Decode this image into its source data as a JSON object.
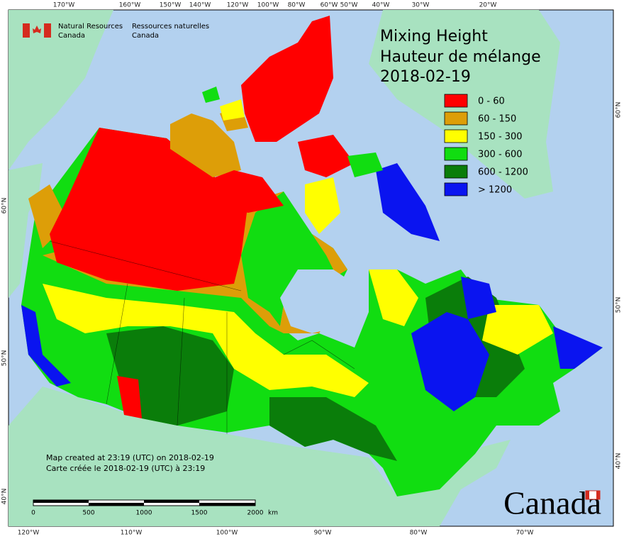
{
  "logo": {
    "en_line1": "Natural Resources",
    "en_line2": "Canada",
    "fr_line1": "Ressources naturelles",
    "fr_line2": "Canada"
  },
  "legend": {
    "title_en": "Mixing Height",
    "title_fr": "Hauteur de mélange",
    "date": "2018-02-19",
    "classes": [
      {
        "label": "0 - 60",
        "color": "#ff0000"
      },
      {
        "label": "60 - 150",
        "color": "#dd9e08"
      },
      {
        "label": "150 - 300",
        "color": "#ffff00"
      },
      {
        "label": "300 - 600",
        "color": "#11dd11"
      },
      {
        "label": "600 - 1200",
        "color": "#0a7d0a"
      },
      {
        "label": "> 1200",
        "color": "#0a14f0"
      }
    ]
  },
  "note": {
    "en": "Map created at 23:19 (UTC) on 2018-02-19",
    "fr": "Carte créée le 2018-02-19 (UTC) à 23:19"
  },
  "scale_bar": {
    "labels": [
      "0",
      "500",
      "1000",
      "1500",
      "2000"
    ],
    "unit": "km"
  },
  "wordmark": "Canada",
  "graticule": {
    "top": [
      "170°W",
      "160°W",
      "150°W",
      "140°W",
      "120°W",
      "100°W",
      "80°W",
      "60°W",
      "50°W",
      "40°W",
      "30°W",
      "20°W"
    ],
    "bottom": [
      "120°W",
      "110°W",
      "100°W",
      "90°W",
      "80°W",
      "70°W"
    ],
    "left": [
      "60°N",
      "50°N",
      "40°N"
    ],
    "right": [
      "60°N",
      "50°N",
      "40°N"
    ]
  }
}
